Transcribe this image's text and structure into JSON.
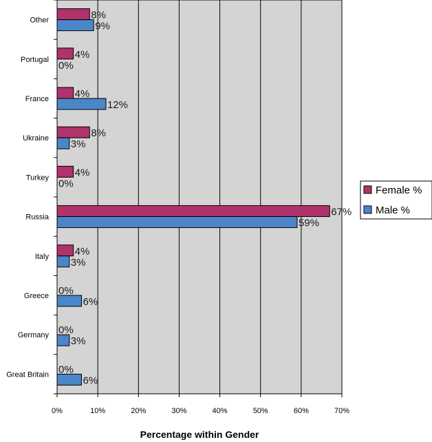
{
  "chart_data": {
    "type": "bar",
    "orientation": "horizontal",
    "categories": [
      "Other",
      "Portugal",
      "France",
      "Ukraine",
      "Turkey",
      "Russia",
      "Italy",
      "Greece",
      "Germany",
      "Great Britain"
    ],
    "series": [
      {
        "name": "Female %",
        "values": [
          8,
          4,
          4,
          8,
          4,
          67,
          4,
          0,
          0,
          0
        ],
        "labels": [
          "8%",
          "4%",
          "4%",
          "8%",
          "4%",
          "67%",
          "4%",
          "0%",
          "0%",
          "0%"
        ],
        "color": "#b0336b"
      },
      {
        "name": "Male %",
        "values": [
          9,
          0,
          12,
          3,
          0,
          59,
          3,
          6,
          3,
          6
        ],
        "labels": [
          "9%",
          "0%",
          "12%",
          "3%",
          "0%",
          "59%",
          "3%",
          "6%",
          "3%",
          "6%"
        ],
        "color": "#4a86c8"
      }
    ],
    "xlim": [
      0,
      70
    ],
    "xticks": [
      "0%",
      "10%",
      "20%",
      "30%",
      "40%",
      "50%",
      "60%",
      "70%"
    ],
    "xlabel": "Percentage within Gender",
    "grid": "vertical",
    "plot_background": "#d4d4d4",
    "legend_position": "right"
  }
}
